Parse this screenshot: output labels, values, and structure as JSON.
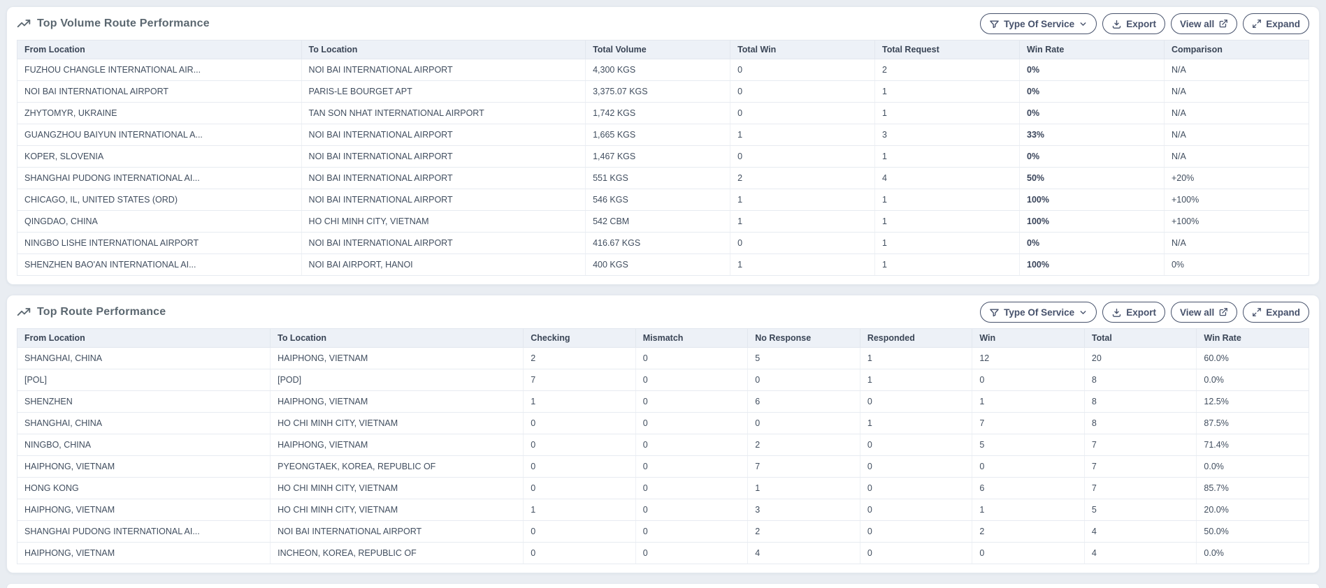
{
  "colors": {
    "page_bg": "#e9edf2",
    "card_bg": "#ffffff",
    "table_header_bg": "#edf1f7",
    "text": "#414e5f",
    "button_outline": "#46516b",
    "title_text": "#5b6770"
  },
  "cards": [
    {
      "title": "Top Volume Route Performance",
      "title_icon": "trending-up-icon",
      "buttons": {
        "type_of_service": "Type Of Service",
        "export": "Export",
        "view_all": "View all",
        "expand": "Expand"
      },
      "columns": [
        "From Location",
        "To Location",
        "Total Volume",
        "Total Win",
        "Total Request",
        "Win Rate",
        "Comparison"
      ],
      "rows": [
        [
          "FUZHOU CHANGLE INTERNATIONAL AIR...",
          "NOI BAI INTERNATIONAL AIRPORT",
          "4,300 KGS",
          "0",
          "2",
          "0%",
          "N/A"
        ],
        [
          "NOI BAI INTERNATIONAL AIRPORT",
          "PARIS-LE BOURGET APT",
          "3,375.07 KGS",
          "0",
          "1",
          "0%",
          "N/A"
        ],
        [
          "ZHYTOMYR, UKRAINE",
          "TAN SON NHAT INTERNATIONAL AIRPORT",
          "1,742 KGS",
          "0",
          "1",
          "0%",
          "N/A"
        ],
        [
          "GUANGZHOU BAIYUN INTERNATIONAL A...",
          "NOI BAI INTERNATIONAL AIRPORT",
          "1,665 KGS",
          "1",
          "3",
          "33%",
          "N/A"
        ],
        [
          "KOPER, SLOVENIA",
          "NOI BAI INTERNATIONAL AIRPORT",
          "1,467 KGS",
          "0",
          "1",
          "0%",
          "N/A"
        ],
        [
          "SHANGHAI PUDONG INTERNATIONAL AI...",
          "NOI BAI INTERNATIONAL AIRPORT",
          "551 KGS",
          "2",
          "4",
          "50%",
          "+20%"
        ],
        [
          "CHICAGO, IL, UNITED STATES (ORD)",
          "NOI BAI INTERNATIONAL AIRPORT",
          "546 KGS",
          "1",
          "1",
          "100%",
          "+100%"
        ],
        [
          "QINGDAO, CHINA",
          "HO CHI MINH CITY, VIETNAM",
          "542 CBM",
          "1",
          "1",
          "100%",
          "+100%"
        ],
        [
          "NINGBO LISHE INTERNATIONAL AIRPORT",
          "NOI BAI INTERNATIONAL AIRPORT",
          "416.67 KGS",
          "0",
          "1",
          "0%",
          "N/A"
        ],
        [
          "SHENZHEN BAO'AN INTERNATIONAL AI...",
          "NOI BAI AIRPORT, HANOI",
          "400 KGS",
          "1",
          "1",
          "100%",
          "0%"
        ]
      ]
    },
    {
      "title": "Top Route Performance",
      "title_icon": "trending-up-icon",
      "buttons": {
        "type_of_service": "Type Of Service",
        "export": "Export",
        "view_all": "View all",
        "expand": "Expand"
      },
      "columns": [
        "From Location",
        "To Location",
        "Checking",
        "Mismatch",
        "No Response",
        "Responded",
        "Win",
        "Total",
        "Win Rate"
      ],
      "rows": [
        [
          "SHANGHAI, CHINA",
          "HAIPHONG, VIETNAM",
          "2",
          "0",
          "5",
          "1",
          "12",
          "20",
          "60.0%"
        ],
        [
          "[POL]",
          "[POD]",
          "7",
          "0",
          "0",
          "1",
          "0",
          "8",
          "0.0%"
        ],
        [
          "SHENZHEN",
          "HAIPHONG, VIETNAM",
          "1",
          "0",
          "6",
          "0",
          "1",
          "8",
          "12.5%"
        ],
        [
          "SHANGHAI, CHINA",
          "HO CHI MINH CITY, VIETNAM",
          "0",
          "0",
          "0",
          "1",
          "7",
          "8",
          "87.5%"
        ],
        [
          "NINGBO, CHINA",
          "HAIPHONG, VIETNAM",
          "0",
          "0",
          "2",
          "0",
          "5",
          "7",
          "71.4%"
        ],
        [
          "HAIPHONG, VIETNAM",
          "PYEONGTAEK, KOREA, REPUBLIC OF",
          "0",
          "0",
          "7",
          "0",
          "0",
          "7",
          "0.0%"
        ],
        [
          "HONG KONG",
          "HO CHI MINH CITY, VIETNAM",
          "0",
          "0",
          "1",
          "0",
          "6",
          "7",
          "85.7%"
        ],
        [
          "HAIPHONG, VIETNAM",
          "HO CHI MINH CITY, VIETNAM",
          "1",
          "0",
          "3",
          "0",
          "1",
          "5",
          "20.0%"
        ],
        [
          "SHANGHAI PUDONG INTERNATIONAL AI...",
          "NOI BAI INTERNATIONAL AIRPORT",
          "0",
          "0",
          "2",
          "0",
          "2",
          "4",
          "50.0%"
        ],
        [
          "HAIPHONG, VIETNAM",
          "INCHEON, KOREA, REPUBLIC OF",
          "0",
          "0",
          "4",
          "0",
          "0",
          "4",
          "0.0%"
        ]
      ]
    }
  ]
}
